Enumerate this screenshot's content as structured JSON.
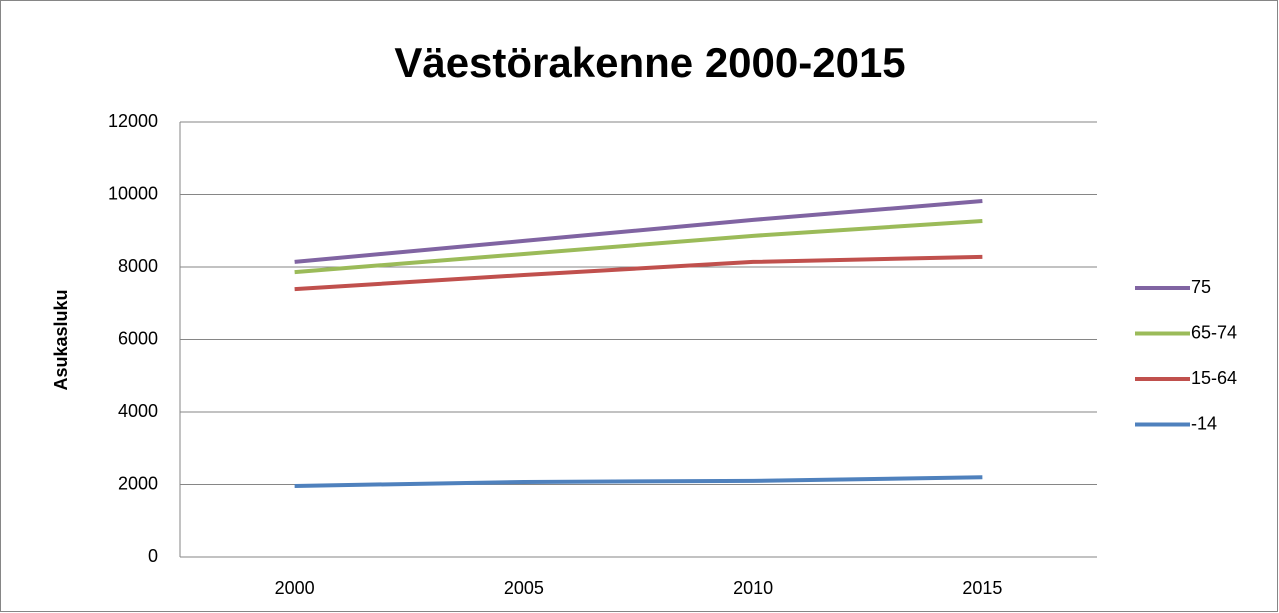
{
  "chart_data": {
    "type": "line",
    "title": "Väestörakenne 2000-2015",
    "y_label": "Asukasluku",
    "categories": [
      "2000",
      "2005",
      "2010",
      "2015"
    ],
    "series": [
      {
        "name": "75",
        "color": "#8064a2",
        "values": [
          8140,
          8720,
          9300,
          9820
        ]
      },
      {
        "name": "65-74",
        "color": "#9bbb59",
        "values": [
          7860,
          8360,
          8860,
          9270
        ]
      },
      {
        "name": "15-64",
        "color": "#c0504d",
        "values": [
          7390,
          7780,
          8140,
          8280
        ]
      },
      {
        "name": "-14",
        "color": "#4f81bd",
        "values": [
          1960,
          2070,
          2100,
          2200
        ]
      }
    ],
    "ylim": [
      0,
      12000
    ],
    "yticks": [
      0,
      2000,
      4000,
      6000,
      8000,
      10000,
      12000
    ],
    "grid": true,
    "legend": "right"
  }
}
